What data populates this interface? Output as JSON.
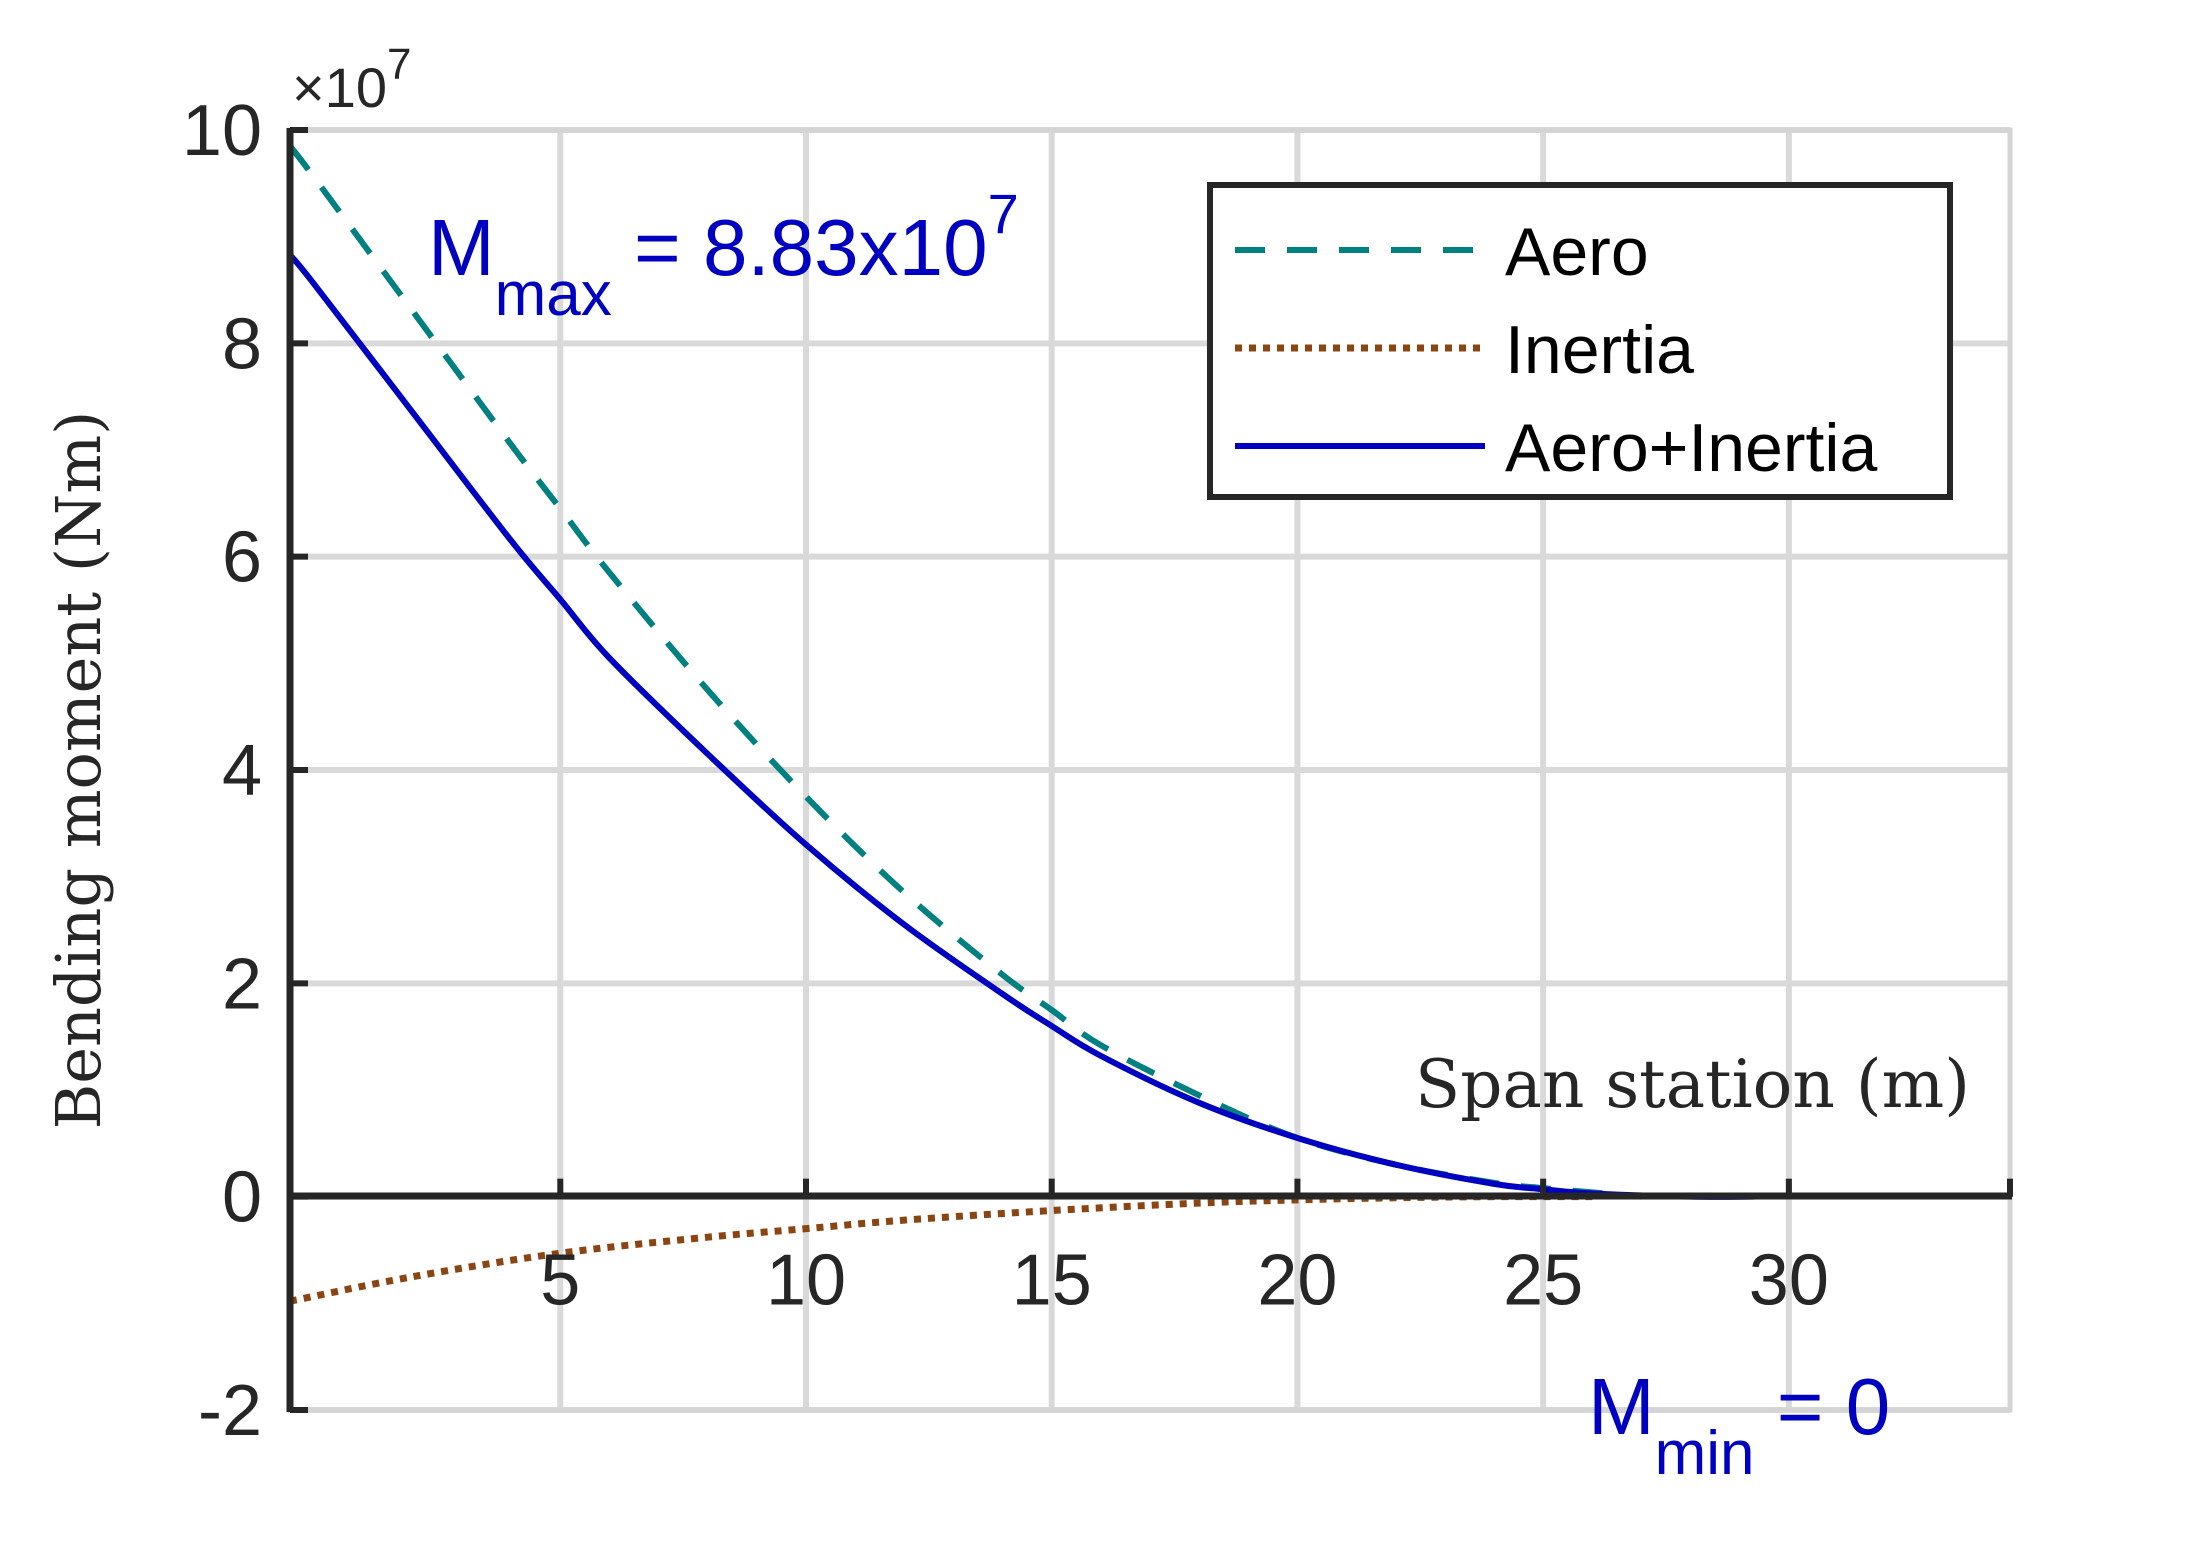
{
  "chart_data": {
    "type": "line",
    "xlabel": "Span station (m)",
    "ylabel": "Bending moment (Nm)",
    "y_exponent": "×10",
    "y_exponent_power": "7",
    "xlim": [
      -0.5,
      34.5
    ],
    "ylim": [
      -2,
      10
    ],
    "x_ticks": [
      5,
      10,
      15,
      20,
      25,
      30
    ],
    "y_ticks": [
      -2,
      0,
      2,
      4,
      6,
      8,
      10
    ],
    "x_tick_labels": [
      "5",
      "10",
      "15",
      "20",
      "25",
      "30"
    ],
    "y_tick_labels": [
      "-2",
      "0",
      "2",
      "4",
      "6",
      "8",
      "10"
    ],
    "grid": true,
    "legend_position": "top-right",
    "series": [
      {
        "name": "Aero",
        "color": "#008080",
        "style": "dashed",
        "x": [
          -0.5,
          0,
          2,
          4,
          5,
          6,
          8,
          10,
          12,
          14,
          15,
          16,
          18,
          20,
          22,
          24,
          25,
          26,
          27
        ],
        "y": [
          9.85,
          9.55,
          8.3,
          7.05,
          6.45,
          5.85,
          4.75,
          3.75,
          2.85,
          2.08,
          1.75,
          1.42,
          0.95,
          0.55,
          0.3,
          0.13,
          0.08,
          0.04,
          0.0
        ]
      },
      {
        "name": "Inertia",
        "color": "#8B4513",
        "style": "dotted",
        "x": [
          -0.5,
          2,
          5,
          8,
          10,
          12,
          15,
          18,
          20,
          22,
          24,
          26
        ],
        "y": [
          -0.98,
          -0.75,
          -0.53,
          -0.38,
          -0.3,
          -0.22,
          -0.13,
          -0.06,
          -0.03,
          -0.01,
          0.0,
          0.0
        ]
      },
      {
        "name": "Aero+Inertia",
        "color": "#0000C0",
        "style": "solid",
        "x": [
          -0.5,
          0,
          2,
          4,
          5,
          6,
          8,
          10,
          12,
          14,
          15,
          16,
          18,
          20,
          22,
          24,
          25,
          26,
          28,
          29.3
        ],
        "y": [
          8.83,
          8.55,
          7.35,
          6.15,
          5.6,
          5.05,
          4.15,
          3.3,
          2.55,
          1.9,
          1.6,
          1.32,
          0.88,
          0.55,
          0.3,
          0.12,
          0.07,
          0.03,
          0.0,
          0.0
        ]
      }
    ],
    "annotations": {
      "max_label_main": "M",
      "max_label_sub": "max",
      "max_label_value": " = 8.83x10",
      "max_label_power": "7",
      "min_label_main": "M",
      "min_label_sub": "min",
      "min_label_value": " = 0",
      "annotation_color": "#0000C0"
    }
  }
}
